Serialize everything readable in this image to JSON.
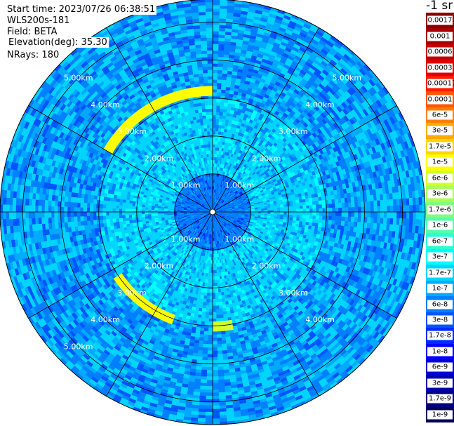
{
  "header": {
    "start_time": "Start time: 2023/07/26 06:38:51",
    "instrument": "WLS200s-181",
    "field": "Field: BETA",
    "elevation": "Elevation(deg): 35.30",
    "nrays": "NRays: 180"
  },
  "colorbar": {
    "unit": "-1 sr",
    "levels": [
      {
        "label": "0.0017",
        "color": "#8b0000"
      },
      {
        "label": "0.001",
        "color": "#a80000"
      },
      {
        "label": "0.0006",
        "color": "#c50000"
      },
      {
        "label": "0.0003",
        "color": "#e00000"
      },
      {
        "label": "0.00017",
        "color": "#ff1a00"
      },
      {
        "label": "0.0001",
        "color": "#ff5500"
      },
      {
        "label": "6e-5",
        "color": "#ff8000"
      },
      {
        "label": "3e-5",
        "color": "#ffaa00"
      },
      {
        "label": "1.7e-5",
        "color": "#ffd400"
      },
      {
        "label": "1e-5",
        "color": "#ffff00"
      },
      {
        "label": "6e-6",
        "color": "#d4ff2a"
      },
      {
        "label": "3e-6",
        "color": "#aaff55"
      },
      {
        "label": "1.7e-6",
        "color": "#80ff80"
      },
      {
        "label": "1e-6",
        "color": "#55ffaa"
      },
      {
        "label": "6e-7",
        "color": "#2affd4"
      },
      {
        "label": "3e-7",
        "color": "#00ffff"
      },
      {
        "label": "1.7e-7",
        "color": "#00d4ff"
      },
      {
        "label": "1e-7",
        "color": "#00aaff"
      },
      {
        "label": "6e-8",
        "color": "#0080ff"
      },
      {
        "label": "3e-8",
        "color": "#0055ff"
      },
      {
        "label": "1.7e-8",
        "color": "#002aff"
      },
      {
        "label": "1e-8",
        "color": "#0000ff"
      },
      {
        "label": "6e-9",
        "color": "#0000d4"
      },
      {
        "label": "3e-9",
        "color": "#0000aa"
      },
      {
        "label": "1.7e-9",
        "color": "#000080"
      },
      {
        "label": "1e-9",
        "color": "#000055"
      }
    ]
  },
  "chart_data": {
    "type": "heatmap",
    "projection": "polar PPI",
    "range_unit": "km",
    "max_range_km": 5.6,
    "range_rings_km": [
      1,
      2,
      3,
      4,
      5
    ],
    "ring_labels": [
      "1.00km",
      "2.00km",
      "3.00km",
      "4.00km",
      "5.00km"
    ],
    "ring_label_angles_deg": [
      45,
      135,
      225,
      315
    ],
    "ring_labels_visible": {
      "45": [
        "1.00km",
        "2.00km",
        "3.00km",
        "4.00km",
        "5.00km"
      ],
      "135": [
        "1.00km",
        "2.00km",
        "3.00km",
        "4.00km"
      ],
      "225": [
        "1.00km",
        "2.00km",
        "3.00km",
        "4.00km",
        "5.00km"
      ],
      "315": [
        "1.00km",
        "2.00km",
        "3.00km",
        "4.00km",
        "5.00km"
      ]
    },
    "spoke_angles_deg": [
      0,
      30,
      60,
      90,
      120,
      150,
      180,
      210,
      240,
      270,
      300,
      330
    ],
    "rays": 180,
    "typical_values": {
      "near_field_0_1km": "6e-8",
      "mid_field_1_3km": "1.7e-7",
      "far_field_3_5.6km": "1e-7"
    },
    "aerosol_features": [
      {
        "azimuth_deg_from": 300,
        "azimuth_deg_to": 360,
        "range_km": 3.2,
        "value": "1e-5"
      },
      {
        "azimuth_deg_from": 200,
        "azimuth_deg_to": 235,
        "range_km": 3.05,
        "value": "1e-5"
      },
      {
        "azimuth_deg_from": 170,
        "azimuth_deg_to": 180,
        "range_km": 3.0,
        "value": "6e-6"
      }
    ]
  },
  "colors": {
    "grid": "#000000",
    "ring_label": "#ffffff",
    "background": "#ffffff"
  }
}
